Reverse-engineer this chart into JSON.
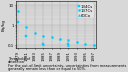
{
  "title": "",
  "ylabel": "Bq/kg",
  "xlabel": "",
  "ylim": [
    0.07,
    15
  ],
  "xlim": [
    1978.5,
    1997.5
  ],
  "xticks": [
    1979,
    1981,
    1983,
    1985,
    1987,
    1989,
    1991,
    1993,
    1995,
    1997
  ],
  "series": [
    {
      "label": "134Cs",
      "color": "#00ccff",
      "marker": "s",
      "markersize": 1.5,
      "data": [
        [
          1979,
          1.5
        ],
        [
          1981,
          0.3
        ],
        [
          1985,
          0.12
        ],
        [
          1991,
          0.12
        ]
      ]
    },
    {
      "label": "137Cs",
      "color": "#00ccff",
      "marker": "o",
      "markersize": 1.5,
      "data": [
        [
          1979,
          5.0
        ],
        [
          1981,
          0.8
        ],
        [
          1983,
          0.4
        ],
        [
          1985,
          0.3
        ],
        [
          1987,
          0.25
        ],
        [
          1989,
          0.2
        ],
        [
          1991,
          0.18
        ],
        [
          1993,
          0.15
        ],
        [
          1995,
          0.12
        ],
        [
          1997,
          0.1
        ]
      ]
    },
    {
      "label": "60Co",
      "color": "#00ccff",
      "marker": "^",
      "markersize": 1.5,
      "data": [
        [
          1985,
          0.12
        ],
        [
          1991,
          0.1
        ]
      ]
    }
  ],
  "caption1": "Threshold of",
  "caption2": "detection",
  "caption3": "For the out-of-limit uncertainty, uncertainties from measurements",
  "caption4": "generally remain less than or equal to 50%.",
  "grid_color": "#aaaaaa",
  "plot_bg_color": "#d8d8d8",
  "fig_bg_color": "#d8d8d8",
  "ylabel_fontsize": 3.0,
  "tick_fontsize": 2.8,
  "legend_fontsize": 2.8,
  "caption_fontsize": 2.5
}
